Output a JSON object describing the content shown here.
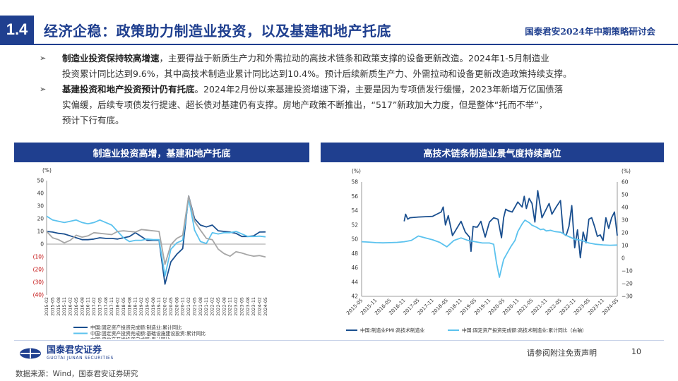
{
  "header": {
    "section_number": "1.4",
    "title": "经济企稳：政策助力制造业投资，以及基建和地产托底",
    "conference": "国泰君安2024年中期策略研讨会"
  },
  "bullets": [
    {
      "bold": "制造业投资保持较高增速",
      "line1_rest": "，主要得益于新质生产力和外需拉动的高技术链条和政策支撑的设备更新改造。2024年1-5月制造业",
      "line2": "投资累计同比达到9.6%，其中高技术制造业累计同比达到10.4%。预计后续新质生产力、外需拉动和设备更新改造政策持续支撑。"
    },
    {
      "bold": "基建投资和地产投资预计仍有托底",
      "line1_rest": "。2024年2月份以来基建投资增速下滑，主要是因为专项债发行缓慢，2023年新增万亿国债落",
      "line2": "实偏缓，后续专项债发行提速、超长债对基建仍有支撑。房地产政策不断推出，“517”新政加大力度，但是整体“托而不举”，",
      "line3": "预计下行有底。"
    }
  ],
  "panels": {
    "left_title": "制造业投资高增，基建和地产托底",
    "right_title": "高技术链条制造业景气度持续高位"
  },
  "footer": {
    "logo_cn": "国泰君安证券",
    "logo_en": "GUOTAI JUNAN SECURITIES",
    "disclaimer": "请参阅附注免责声明",
    "page": "10",
    "source": "数据来源：Wind，国泰君安证券研究"
  },
  "colors": {
    "brand": "#1f3f8f",
    "series_dark": "#1a4f8f",
    "series_light": "#5bc2ee",
    "series_gray": "#a6a6a6"
  },
  "chart_data": [
    {
      "type": "line",
      "unit_label": "(%)",
      "ylim": [
        -40,
        50
      ],
      "yticks": [
        50,
        40,
        30,
        20,
        10,
        0,
        -10,
        -20,
        -30,
        -40
      ],
      "ytick_labels": [
        "50",
        "40",
        "30",
        "20",
        "10",
        "0",
        "(10)",
        "(20)",
        "(30)",
        "(40)"
      ],
      "x_labels": [
        "2015-02",
        "2015-05",
        "2015-08",
        "2015-11",
        "2016-02",
        "2016-05",
        "2016-08",
        "2016-11",
        "2017-02",
        "2017-05",
        "2017-08",
        "2017-11",
        "2018-02",
        "2018-05",
        "2018-08",
        "2018-11",
        "2019-02",
        "2019-05",
        "2019-08",
        "2019-11",
        "2020-02",
        "2020-05",
        "2020-08",
        "2020-11",
        "2021-02",
        "2021-05",
        "2021-08",
        "2021-11",
        "2022-02",
        "2022-05",
        "2022-08",
        "2022-11",
        "2023-02",
        "2023-05",
        "2023-08",
        "2023-11",
        "2024-02",
        "2024-05"
      ],
      "legend_position": "bottom",
      "series": [
        {
          "name": "中国:固定资产投资完成额:制造业:累计同比",
          "color_key": "series_dark",
          "x": [
            0,
            1,
            2,
            3,
            4,
            5,
            6,
            7,
            8,
            9,
            10,
            11,
            12,
            13,
            14,
            15,
            16,
            17,
            18,
            19,
            20,
            21,
            22,
            23,
            24,
            25,
            26,
            27,
            28,
            29,
            30,
            31,
            32,
            33,
            34,
            35,
            36,
            37
          ],
          "y": [
            10,
            9.5,
            8.5,
            8,
            6.5,
            5,
            3.5,
            3.5,
            4,
            5,
            4.5,
            4.5,
            4,
            5,
            6,
            9,
            6,
            3,
            3,
            3,
            -31.5,
            -14,
            -8,
            -3.5,
            38,
            20,
            15,
            13.5,
            15,
            10.5,
            10,
            9.5,
            8.5,
            6,
            6,
            6.5,
            9.5,
            9.6
          ]
        },
        {
          "name": "中国:固定资产投资完成额:基础设施建设投资:累计同比",
          "color_key": "series_light",
          "x": [
            0,
            1,
            2,
            3,
            4,
            5,
            6,
            7,
            8,
            9,
            10,
            11,
            12,
            13,
            14,
            15,
            16,
            17,
            18,
            19,
            20,
            21,
            22,
            23,
            24,
            25,
            26,
            27,
            28,
            29,
            30,
            31,
            32,
            33,
            34,
            35,
            36,
            37
          ],
          "y": [
            22,
            19,
            18,
            17,
            18,
            19,
            17,
            16,
            17,
            19,
            17,
            15,
            10,
            5,
            2,
            3,
            3,
            4,
            3.5,
            3.5,
            -25,
            -4,
            1,
            3,
            36,
            11,
            2,
            0.5,
            9,
            8,
            9,
            9,
            10,
            8,
            6,
            6,
            6.3,
            5.7
          ]
        },
        {
          "name": "中国:房地产开发投资完成额:累计同比",
          "color_key": "series_gray",
          "x": [
            0,
            1,
            2,
            3,
            4,
            5,
            6,
            7,
            8,
            9,
            10,
            11,
            12,
            13,
            14,
            15,
            16,
            17,
            18,
            19,
            20,
            21,
            22,
            23,
            24,
            25,
            26,
            27,
            28,
            29,
            30,
            31,
            32,
            33,
            34,
            35,
            36,
            37
          ],
          "y": [
            10,
            5,
            3.5,
            1,
            3,
            7,
            5.5,
            6.5,
            9,
            8.5,
            8,
            7.5,
            10,
            10.5,
            10,
            9.5,
            11.5,
            11,
            10.5,
            10,
            -16,
            -0.5,
            4.5,
            7,
            38,
            18,
            11,
            4.5,
            3.5,
            -4,
            -7.5,
            -9.5,
            -6,
            -7,
            -8.5,
            -9.5,
            -9,
            -10.1
          ]
        }
      ]
    },
    {
      "type": "line",
      "left_unit_label": "(%)",
      "right_unit_label": "(%)",
      "ylim_left": [
        42,
        58
      ],
      "ylim_right": [
        -30,
        60
      ],
      "yticks_left": [
        58,
        56,
        54,
        52,
        50,
        48,
        46,
        44,
        42
      ],
      "yticks_right": [
        60,
        50,
        40,
        30,
        20,
        10,
        0,
        -10,
        -20,
        -30
      ],
      "x_labels": [
        "2015-05",
        "2015-11",
        "2016-05",
        "2016-11",
        "2017-05",
        "2017-11",
        "2018-05",
        "2018-11",
        "2019-05",
        "2019-11",
        "2020-05",
        "2020-11",
        "2021-05",
        "2021-11",
        "2022-05",
        "2022-11",
        "2023-05",
        "2023-11",
        "2024-05"
      ],
      "legend_position": "bottom",
      "series": [
        {
          "name": "中国:制造业PMI:高技术制造业",
          "axis": "left",
          "color_key": "series_dark",
          "x": [
            3.0,
            3.1,
            3.25,
            3.4,
            4.0,
            5.0,
            5.6,
            5.75,
            5.9,
            6.1,
            6.4,
            7.0,
            7.3,
            7.6,
            7.7,
            7.85,
            8.0,
            8.15,
            8.4,
            8.7,
            9.0,
            9.3,
            9.6,
            9.85,
            10.0,
            10.15,
            10.3,
            10.6,
            11.0,
            11.3,
            11.45,
            11.6,
            11.8,
            12.0,
            12.2,
            12.4,
            12.7,
            13.0,
            13.2,
            13.4,
            13.7,
            14.0,
            14.2,
            14.4,
            14.6,
            14.8,
            15.0,
            15.2,
            15.4,
            15.6,
            15.8,
            16.0,
            16.2,
            16.4,
            16.6,
            16.8,
            17.0,
            17.2,
            17.4,
            17.6,
            17.8,
            18.0
          ],
          "y": [
            52.5,
            53.5,
            52.8,
            53.0,
            53.1,
            53.2,
            53.8,
            54.5,
            52.0,
            53.3,
            50.5,
            52.5,
            51.0,
            50.3,
            48.3,
            51.8,
            51.7,
            51.7,
            52.5,
            50.3,
            52.4,
            53.0,
            52.8,
            50.2,
            53.0,
            54.2,
            54.0,
            53.8,
            55.2,
            54.5,
            56.0,
            54.3,
            55.7,
            55.0,
            52.4,
            56.8,
            53.0,
            54.2,
            55.0,
            53.5,
            54.5,
            55.4,
            50.8,
            50.5,
            51.8,
            54.7,
            48.8,
            51.3,
            47.4,
            51.0,
            49.5,
            52.8,
            53.0,
            51.8,
            50.4,
            50.6,
            49.8,
            53.0,
            51.5,
            53.0,
            53.8,
            50.5
          ]
        },
        {
          "name": "中国:固定资产投资完成额:高技术制造业:累计同比（右轴）",
          "axis": "right",
          "color_key": "series_light",
          "x": [
            0.0,
            0.5,
            1.0,
            1.5,
            2.0,
            2.5,
            3.0,
            3.5,
            4.0,
            4.5,
            5.0,
            5.5,
            6.0,
            6.5,
            7.0,
            7.5,
            8.0,
            8.5,
            9.0,
            9.3,
            9.5,
            9.7,
            10.0,
            10.3,
            10.5,
            10.8,
            11.0,
            11.3,
            11.5,
            11.8,
            12.0,
            12.3,
            12.6,
            12.8,
            13.0,
            13.3,
            13.6,
            14.0,
            14.5,
            15.0,
            15.5,
            16.0,
            16.5,
            17.0,
            17.5,
            18.0
          ],
          "y": [
            13.0,
            12.7,
            12.3,
            12.1,
            12.3,
            12.5,
            13.0,
            14.0,
            17.5,
            16.0,
            14.5,
            12.5,
            9.0,
            14.0,
            16.0,
            14.0,
            13.0,
            12.0,
            12.0,
            11.0,
            -4.0,
            -15.0,
            -1.0,
            5.0,
            9.0,
            14.0,
            21.0,
            27.0,
            30.0,
            28.0,
            26.0,
            24.5,
            22.5,
            23.0,
            21.5,
            22.0,
            21.0,
            20.5,
            17.5,
            15.0,
            14.0,
            12.0,
            11.0,
            10.5,
            10.2,
            10.4
          ]
        }
      ]
    }
  ]
}
